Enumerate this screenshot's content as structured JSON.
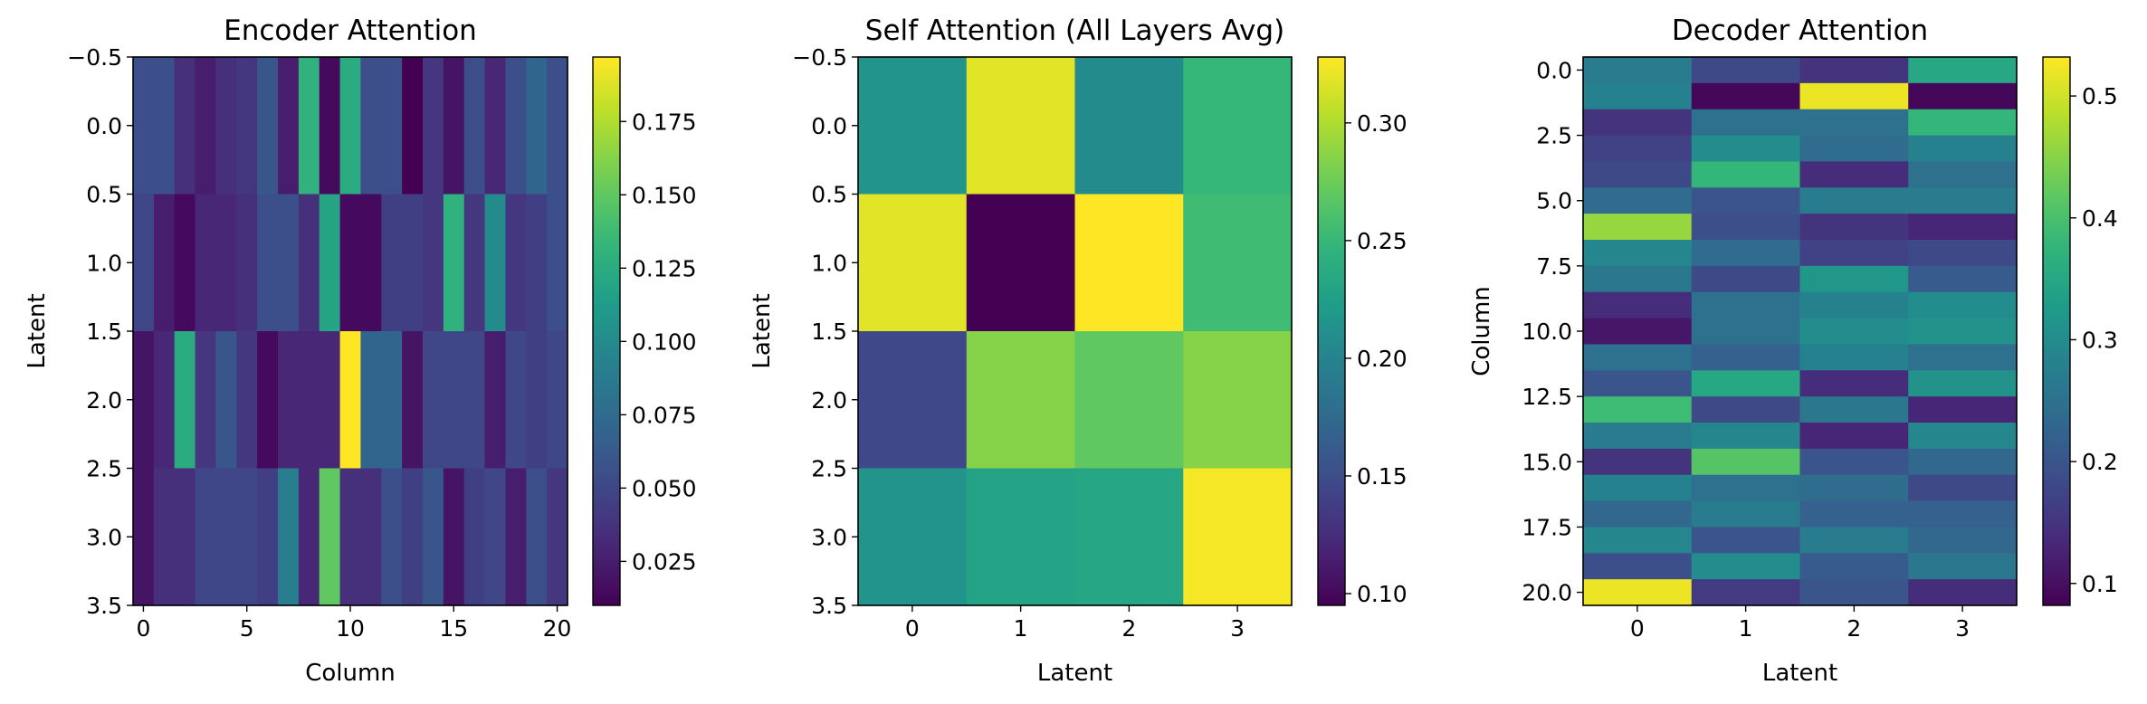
{
  "chart_data": [
    {
      "type": "heatmap",
      "title": "Encoder Attention",
      "xlabel": "Column",
      "ylabel": "Latent",
      "xticks": [
        "0",
        "5",
        "10",
        "15",
        "20"
      ],
      "xtick_values": [
        0,
        5,
        10,
        15,
        20
      ],
      "yticks": [
        "−0.5",
        "0.0",
        "0.5",
        "1.0",
        "1.5",
        "2.0",
        "2.5",
        "3.0",
        "3.5"
      ],
      "ytick_values": [
        -0.5,
        0,
        0.5,
        1,
        1.5,
        2,
        2.5,
        3,
        3.5
      ],
      "xlim": [
        -0.5,
        20.5
      ],
      "ylim": [
        3.5,
        -0.5
      ],
      "cbar_ticks": [
        "0.025",
        "0.050",
        "0.075",
        "0.100",
        "0.125",
        "0.150",
        "0.175"
      ],
      "cbar_tick_values": [
        0.025,
        0.05,
        0.075,
        0.1,
        0.125,
        0.15,
        0.175
      ],
      "vmin": 0.01,
      "vmax": 0.197,
      "colormap": "viridis",
      "values": [
        [
          0.055,
          0.055,
          0.035,
          0.025,
          0.035,
          0.04,
          0.06,
          0.025,
          0.13,
          0.015,
          0.125,
          0.055,
          0.055,
          0.01,
          0.04,
          0.02,
          0.055,
          0.03,
          0.055,
          0.07,
          0.055
        ],
        [
          0.05,
          0.025,
          0.015,
          0.03,
          0.03,
          0.035,
          0.055,
          0.055,
          0.035,
          0.12,
          0.015,
          0.015,
          0.045,
          0.045,
          0.04,
          0.13,
          0.04,
          0.1,
          0.04,
          0.045,
          0.055
        ],
        [
          0.02,
          0.03,
          0.125,
          0.04,
          0.06,
          0.04,
          0.015,
          0.03,
          0.03,
          0.03,
          0.197,
          0.07,
          0.07,
          0.02,
          0.05,
          0.05,
          0.05,
          0.025,
          0.05,
          0.045,
          0.05
        ],
        [
          0.02,
          0.035,
          0.035,
          0.05,
          0.05,
          0.05,
          0.045,
          0.09,
          0.03,
          0.15,
          0.035,
          0.035,
          0.055,
          0.045,
          0.06,
          0.02,
          0.045,
          0.05,
          0.025,
          0.055,
          0.04
        ]
      ]
    },
    {
      "type": "heatmap",
      "title": "Self Attention (All Layers Avg)",
      "xlabel": "Latent",
      "ylabel": "Latent",
      "xticks": [
        "0",
        "1",
        "2",
        "3"
      ],
      "xtick_values": [
        0,
        1,
        2,
        3
      ],
      "yticks": [
        "−0.5",
        "0.0",
        "0.5",
        "1.0",
        "1.5",
        "2.0",
        "2.5",
        "3.0",
        "3.5"
      ],
      "ytick_values": [
        -0.5,
        0,
        0.5,
        1,
        1.5,
        2,
        2.5,
        3,
        3.5
      ],
      "xlim": [
        -0.5,
        3.5
      ],
      "ylim": [
        3.5,
        -0.5
      ],
      "cbar_ticks": [
        "0.10",
        "0.15",
        "0.20",
        "0.25",
        "0.30"
      ],
      "cbar_tick_values": [
        0.1,
        0.15,
        0.2,
        0.25,
        0.3
      ],
      "vmin": 0.095,
      "vmax": 0.328,
      "colormap": "viridis",
      "values": [
        [
          0.215,
          0.318,
          0.207,
          0.25
        ],
        [
          0.318,
          0.095,
          0.328,
          0.255
        ],
        [
          0.145,
          0.285,
          0.27,
          0.285
        ],
        [
          0.215,
          0.23,
          0.233,
          0.325
        ]
      ]
    },
    {
      "type": "heatmap",
      "title": "Decoder Attention",
      "xlabel": "Latent",
      "ylabel": "Column",
      "xticks": [
        "0",
        "1",
        "2",
        "3"
      ],
      "xtick_values": [
        0,
        1,
        2,
        3
      ],
      "yticks": [
        "0.0",
        "2.5",
        "5.0",
        "7.5",
        "10.0",
        "12.5",
        "15.0",
        "17.5",
        "20.0"
      ],
      "ytick_values": [
        0,
        2.5,
        5,
        7.5,
        10,
        12.5,
        15,
        17.5,
        20
      ],
      "xlim": [
        -0.5,
        3.5
      ],
      "ylim": [
        20.5,
        -0.5
      ],
      "cbar_ticks": [
        "0.1",
        "0.2",
        "0.3",
        "0.4",
        "0.5"
      ],
      "cbar_tick_values": [
        0.1,
        0.2,
        0.3,
        0.4,
        0.5
      ],
      "vmin": 0.082,
      "vmax": 0.532,
      "colormap": "viridis",
      "values": [
        [
          0.27,
          0.18,
          0.15,
          0.35
        ],
        [
          0.28,
          0.09,
          0.52,
          0.09
        ],
        [
          0.15,
          0.25,
          0.25,
          0.38
        ],
        [
          0.17,
          0.3,
          0.24,
          0.28
        ],
        [
          0.18,
          0.38,
          0.14,
          0.25
        ],
        [
          0.24,
          0.2,
          0.27,
          0.27
        ],
        [
          0.46,
          0.19,
          0.15,
          0.13
        ],
        [
          0.29,
          0.24,
          0.17,
          0.18
        ],
        [
          0.26,
          0.18,
          0.32,
          0.21
        ],
        [
          0.14,
          0.25,
          0.28,
          0.3
        ],
        [
          0.11,
          0.25,
          0.3,
          0.31
        ],
        [
          0.25,
          0.22,
          0.28,
          0.25
        ],
        [
          0.2,
          0.35,
          0.14,
          0.31
        ],
        [
          0.39,
          0.18,
          0.26,
          0.13
        ],
        [
          0.27,
          0.29,
          0.13,
          0.29
        ],
        [
          0.15,
          0.41,
          0.2,
          0.23
        ],
        [
          0.28,
          0.25,
          0.24,
          0.18
        ],
        [
          0.23,
          0.27,
          0.22,
          0.22
        ],
        [
          0.29,
          0.2,
          0.27,
          0.23
        ],
        [
          0.19,
          0.3,
          0.21,
          0.26
        ],
        [
          0.52,
          0.16,
          0.2,
          0.14
        ]
      ]
    }
  ]
}
